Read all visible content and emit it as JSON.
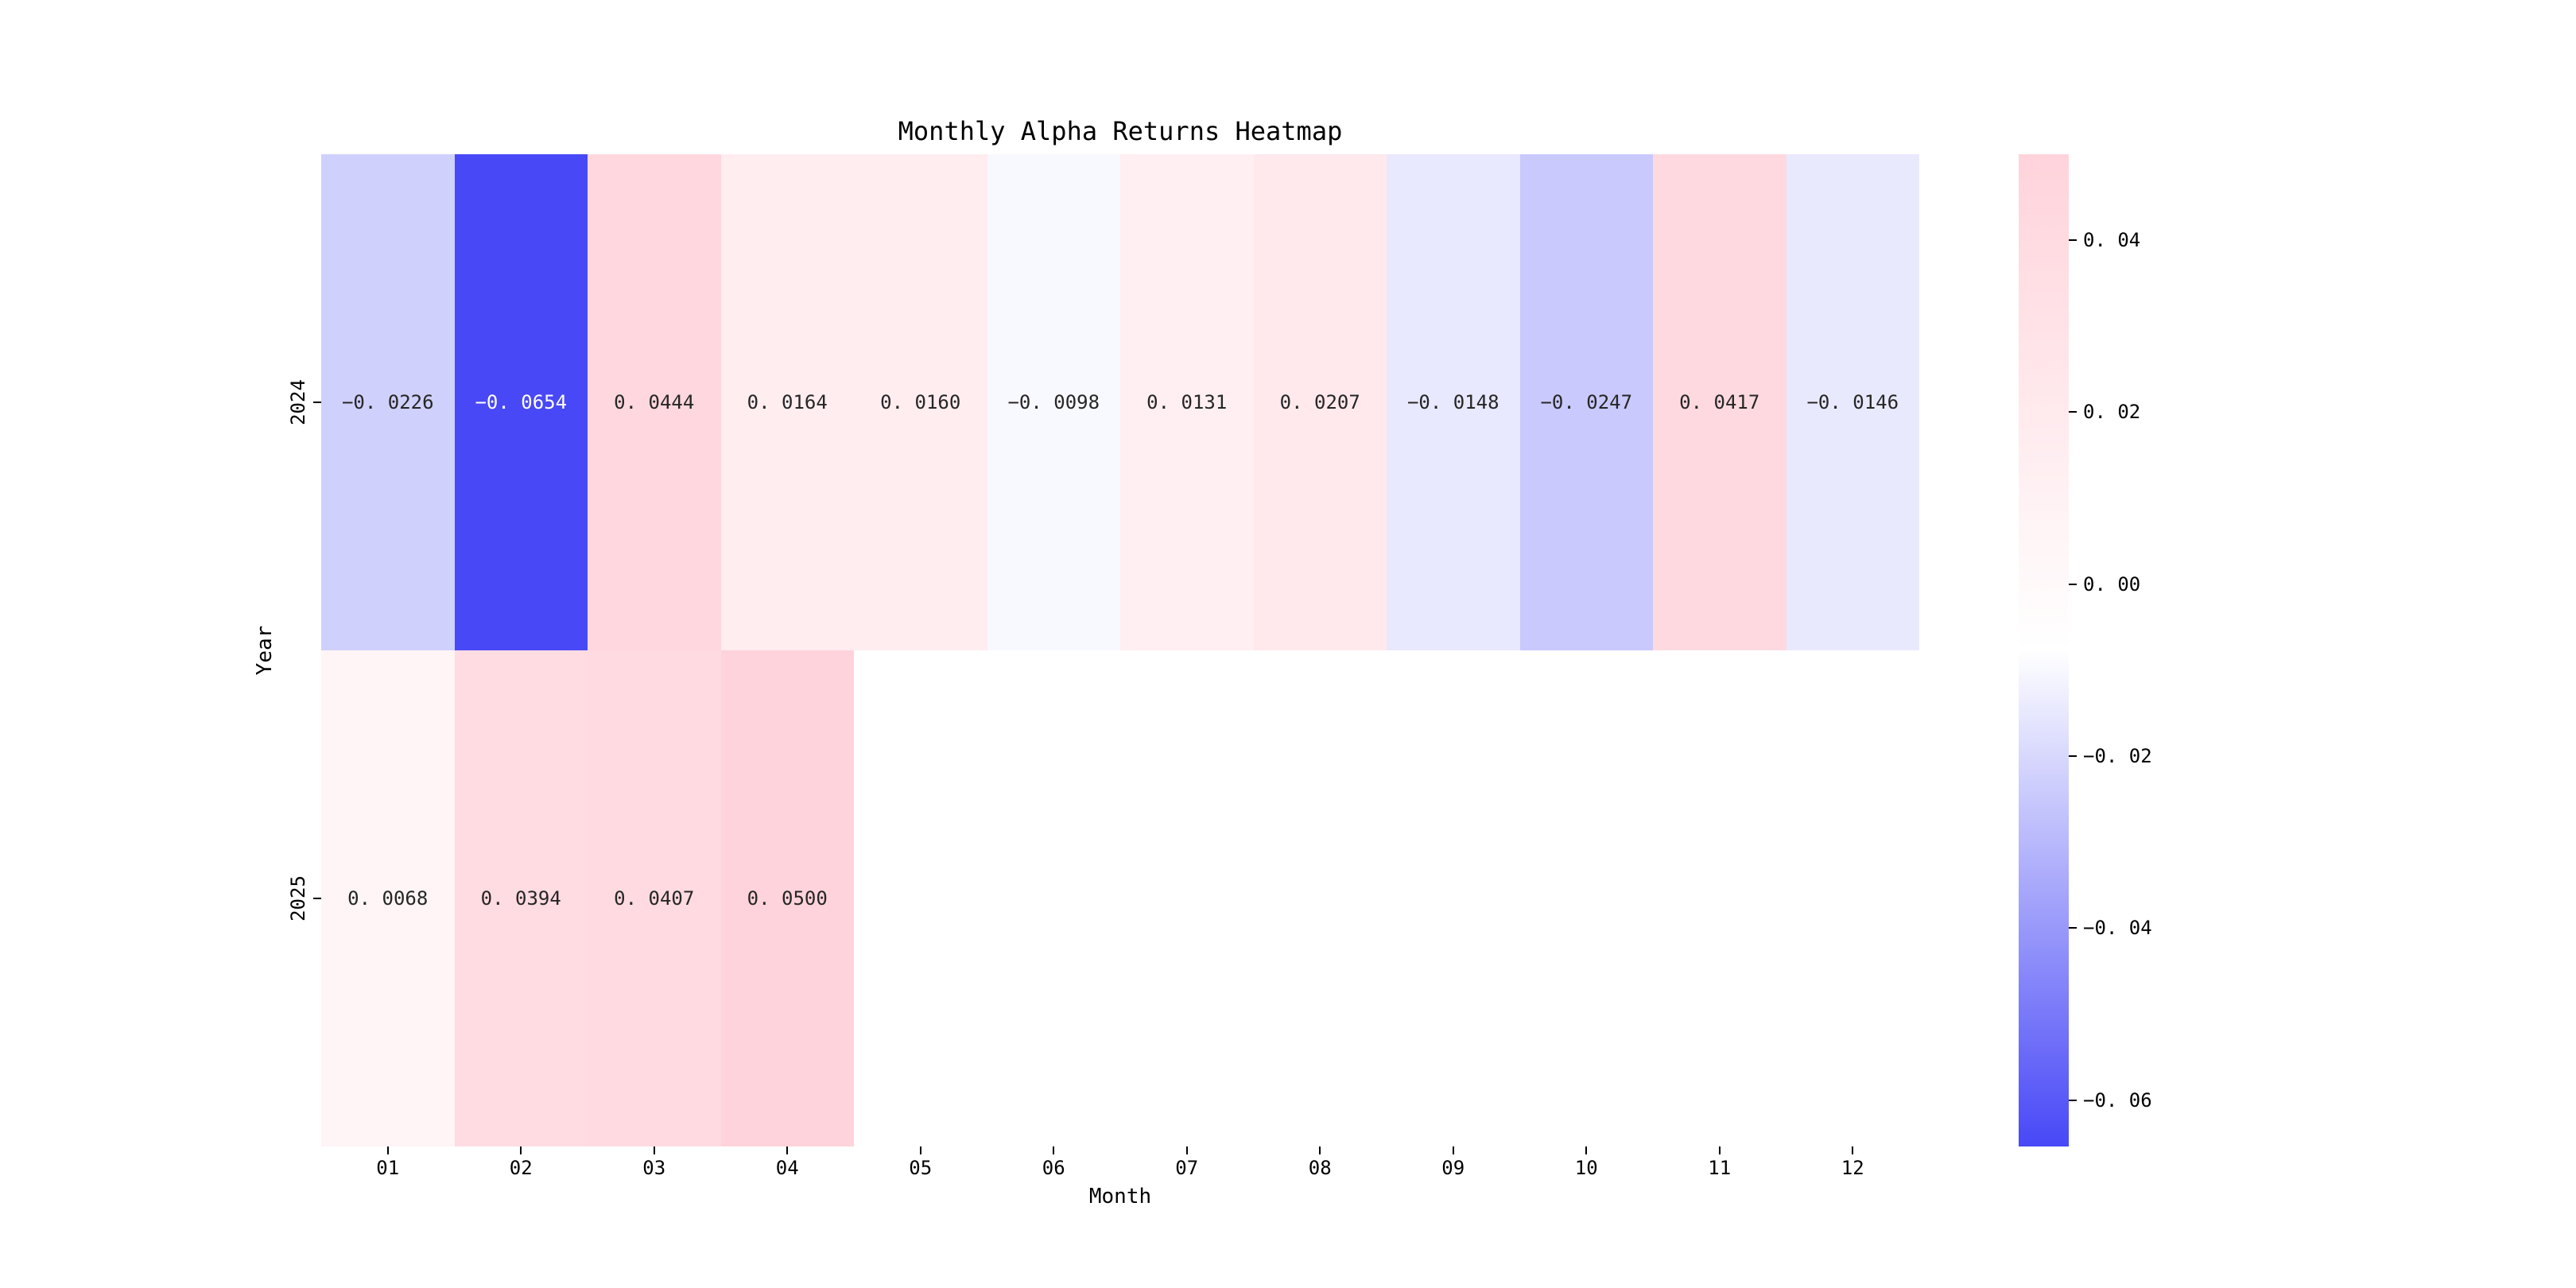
{
  "title": "Monthly Alpha Returns Heatmap",
  "chart_data": {
    "type": "heatmap",
    "title": "Monthly Alpha Returns Heatmap",
    "xlabel": "Month",
    "ylabel": "Year",
    "columns": [
      "01",
      "02",
      "03",
      "04",
      "05",
      "06",
      "07",
      "08",
      "09",
      "10",
      "11",
      "12"
    ],
    "rows": [
      "2024",
      "2025"
    ],
    "values": [
      [
        -0.0226,
        -0.0654,
        0.0444,
        0.0164,
        0.016,
        -0.0098,
        0.0131,
        0.0207,
        -0.0148,
        -0.0247,
        0.0417,
        -0.0146
      ],
      [
        0.0068,
        0.0394,
        0.0407,
        0.05,
        null,
        null,
        null,
        null,
        null,
        null,
        null,
        null
      ]
    ],
    "vmin": -0.0654,
    "vmax": 0.05,
    "colormap": {
      "min_color": "#4848f7",
      "mid_color": "#ffffff",
      "max_color": "#ffd3db"
    },
    "grid": false,
    "legend_position": "right-colorbar"
  },
  "annotations": [
    [
      "−0. 0226",
      "−0. 0654",
      "0. 0444",
      "0. 0164",
      "0. 0160",
      "−0. 0098",
      "0. 0131",
      "0. 0207",
      "−0. 0148",
      "−0. 0247",
      "0. 0417",
      "−0. 0146"
    ],
    [
      "0. 0068",
      "0. 0394",
      "0. 0407",
      "0. 0500",
      null,
      null,
      null,
      null,
      null,
      null,
      null,
      null
    ]
  ],
  "colorbar": {
    "tick_labels": [
      "0. 04",
      "0. 02",
      "0. 00",
      "−0. 02",
      "−0. 04",
      "−0. 06"
    ],
    "tick_values": [
      0.04,
      0.02,
      0.0,
      -0.02,
      -0.04,
      -0.06
    ]
  },
  "text_colors": {
    "dark": "#262626",
    "light": "#ffffff"
  }
}
